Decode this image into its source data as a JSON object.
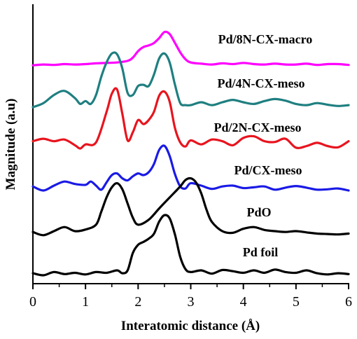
{
  "chart_data": {
    "type": "line",
    "xlabel": "Interatomic distance (Å)",
    "ylabel": "Magnitude (a.u)",
    "xlim": [
      0,
      6
    ],
    "xticks": [
      "0",
      "1",
      "2",
      "3",
      "4",
      "5",
      "6"
    ],
    "grid": false,
    "legend": "none",
    "series": [
      {
        "name": "Pd/8N-CX-macro",
        "color": "#ff00ff",
        "x": [
          0,
          0.2,
          0.4,
          0.6,
          0.8,
          1.0,
          1.2,
          1.4,
          1.6,
          1.8,
          1.9,
          2.0,
          2.1,
          2.2,
          2.3,
          2.4,
          2.5,
          2.6,
          2.7,
          2.8,
          2.9,
          3.0,
          3.2,
          3.4,
          3.6,
          3.8,
          4.0,
          4.2,
          4.4,
          4.6,
          4.8,
          5.0,
          5.2,
          5.4,
          5.6,
          5.8,
          6.0
        ],
        "y": [
          0.03,
          0.05,
          0.04,
          0.06,
          0.05,
          0.06,
          0.08,
          0.09,
          0.1,
          0.14,
          0.22,
          0.38,
          0.48,
          0.52,
          0.58,
          0.7,
          0.85,
          0.8,
          0.58,
          0.35,
          0.18,
          0.1,
          0.07,
          0.05,
          0.08,
          0.06,
          0.09,
          0.06,
          0.05,
          0.07,
          0.05,
          0.05,
          0.07,
          0.04,
          0.06,
          0.06,
          0.04
        ]
      },
      {
        "name": "Pd/4N-CX-meso",
        "color": "#1f7f80",
        "x": [
          0,
          0.2,
          0.4,
          0.6,
          0.8,
          0.9,
          1.0,
          1.1,
          1.2,
          1.3,
          1.4,
          1.5,
          1.6,
          1.7,
          1.8,
          1.9,
          2.0,
          2.1,
          2.2,
          2.3,
          2.4,
          2.5,
          2.6,
          2.7,
          2.8,
          2.9,
          3.0,
          3.2,
          3.4,
          3.6,
          3.8,
          4.0,
          4.2,
          4.4,
          4.6,
          4.8,
          5.0,
          5.2,
          5.4,
          5.6,
          5.8,
          6.0
        ],
        "y": [
          0.0,
          0.1,
          0.3,
          0.4,
          0.22,
          0.08,
          0.15,
          0.08,
          0.3,
          0.75,
          1.1,
          1.32,
          1.3,
          0.95,
          0.35,
          0.3,
          0.52,
          0.55,
          0.52,
          0.8,
          1.2,
          1.32,
          1.1,
          0.55,
          0.1,
          0.05,
          0.05,
          0.12,
          0.05,
          0.12,
          0.18,
          0.12,
          0.08,
          0.15,
          0.2,
          0.16,
          0.08,
          0.05,
          0.1,
          0.06,
          0.03,
          0.05
        ]
      },
      {
        "name": "Pd/2N-CX-meso",
        "color": "#e8141e",
        "x": [
          0,
          0.2,
          0.4,
          0.6,
          0.8,
          0.9,
          1.0,
          1.2,
          1.4,
          1.5,
          1.6,
          1.7,
          1.8,
          1.9,
          2.0,
          2.1,
          2.2,
          2.3,
          2.4,
          2.5,
          2.6,
          2.7,
          2.8,
          2.9,
          3.0,
          3.2,
          3.4,
          3.6,
          3.8,
          4.0,
          4.2,
          4.4,
          4.6,
          4.8,
          5.0,
          5.2,
          5.4,
          5.6,
          5.8,
          6.0
        ],
        "y": [
          0.18,
          0.24,
          0.18,
          0.22,
          0.08,
          0.0,
          0.1,
          0.15,
          0.9,
          1.35,
          1.45,
          0.85,
          0.2,
          0.4,
          0.7,
          0.6,
          0.7,
          0.9,
          1.3,
          1.4,
          1.15,
          0.5,
          0.15,
          0.05,
          0.2,
          0.1,
          0.22,
          0.18,
          0.08,
          0.26,
          0.3,
          0.18,
          0.16,
          0.24,
          0.02,
          0.06,
          0.14,
          0.06,
          0.03,
          0.18
        ]
      },
      {
        "name": "Pd/CX-meso",
        "color": "#1a1ae6",
        "x": [
          0,
          0.2,
          0.4,
          0.6,
          0.8,
          1.0,
          1.1,
          1.2,
          1.3,
          1.4,
          1.5,
          1.6,
          1.7,
          1.8,
          1.9,
          2.0,
          2.1,
          2.2,
          2.3,
          2.4,
          2.5,
          2.6,
          2.7,
          2.8,
          2.9,
          3.0,
          3.2,
          3.4,
          3.6,
          3.8,
          4.0,
          4.2,
          4.4,
          4.6,
          4.8,
          5.0,
          5.2,
          5.4,
          5.6,
          5.8,
          6.0
        ],
        "y": [
          0.1,
          0.0,
          0.12,
          0.22,
          0.16,
          0.14,
          0.22,
          0.12,
          0.02,
          0.2,
          0.38,
          0.42,
          0.3,
          0.25,
          0.35,
          0.42,
          0.38,
          0.45,
          0.65,
          1.0,
          1.1,
          0.85,
          0.4,
          0.1,
          0.05,
          0.18,
          0.12,
          0.04,
          0.1,
          0.12,
          0.06,
          0.08,
          0.1,
          0.02,
          0.07,
          0.11,
          0.07,
          0.02,
          0.03,
          0.05,
          0.0
        ]
      },
      {
        "name": "PdO",
        "color": "#000000",
        "x": [
          0,
          0.2,
          0.4,
          0.6,
          0.8,
          1.0,
          1.2,
          1.3,
          1.4,
          1.5,
          1.6,
          1.7,
          1.8,
          1.9,
          2.0,
          2.2,
          2.4,
          2.6,
          2.8,
          2.9,
          3.0,
          3.1,
          3.2,
          3.3,
          3.4,
          3.6,
          3.8,
          4.0,
          4.2,
          4.4,
          4.6,
          4.8,
          5.0,
          5.2,
          5.4,
          5.6,
          5.8,
          6.0
        ],
        "y": [
          0.1,
          0.02,
          0.12,
          0.22,
          0.12,
          0.16,
          0.28,
          0.6,
          0.95,
          1.2,
          1.3,
          1.15,
          0.8,
          0.45,
          0.28,
          0.4,
          0.68,
          0.95,
          1.22,
          1.38,
          1.42,
          1.32,
          1.05,
          0.65,
          0.35,
          0.12,
          0.08,
          0.18,
          0.22,
          0.15,
          0.12,
          0.1,
          0.12,
          0.09,
          0.06,
          0.05,
          0.04,
          0.06
        ]
      },
      {
        "name": "Pd foil",
        "color": "#000000",
        "x": [
          0,
          0.2,
          0.4,
          0.6,
          0.8,
          1.0,
          1.2,
          1.4,
          1.6,
          1.7,
          1.8,
          1.9,
          2.0,
          2.1,
          2.2,
          2.3,
          2.4,
          2.5,
          2.6,
          2.7,
          2.8,
          2.9,
          3.0,
          3.2,
          3.4,
          3.6,
          3.8,
          4.0,
          4.2,
          4.4,
          4.6,
          4.8,
          5.0,
          5.2,
          5.4,
          5.6,
          5.8,
          6.0
        ],
        "y": [
          0.05,
          0.0,
          0.08,
          0.03,
          0.06,
          0.02,
          0.08,
          0.06,
          0.12,
          0.05,
          0.12,
          0.55,
          0.75,
          0.82,
          0.9,
          1.02,
          1.32,
          1.48,
          1.4,
          1.0,
          0.45,
          0.15,
          0.08,
          0.12,
          0.04,
          0.13,
          0.1,
          0.06,
          0.12,
          0.06,
          0.14,
          0.08,
          0.06,
          0.12,
          0.05,
          0.02,
          0.05,
          0.03
        ]
      }
    ]
  }
}
